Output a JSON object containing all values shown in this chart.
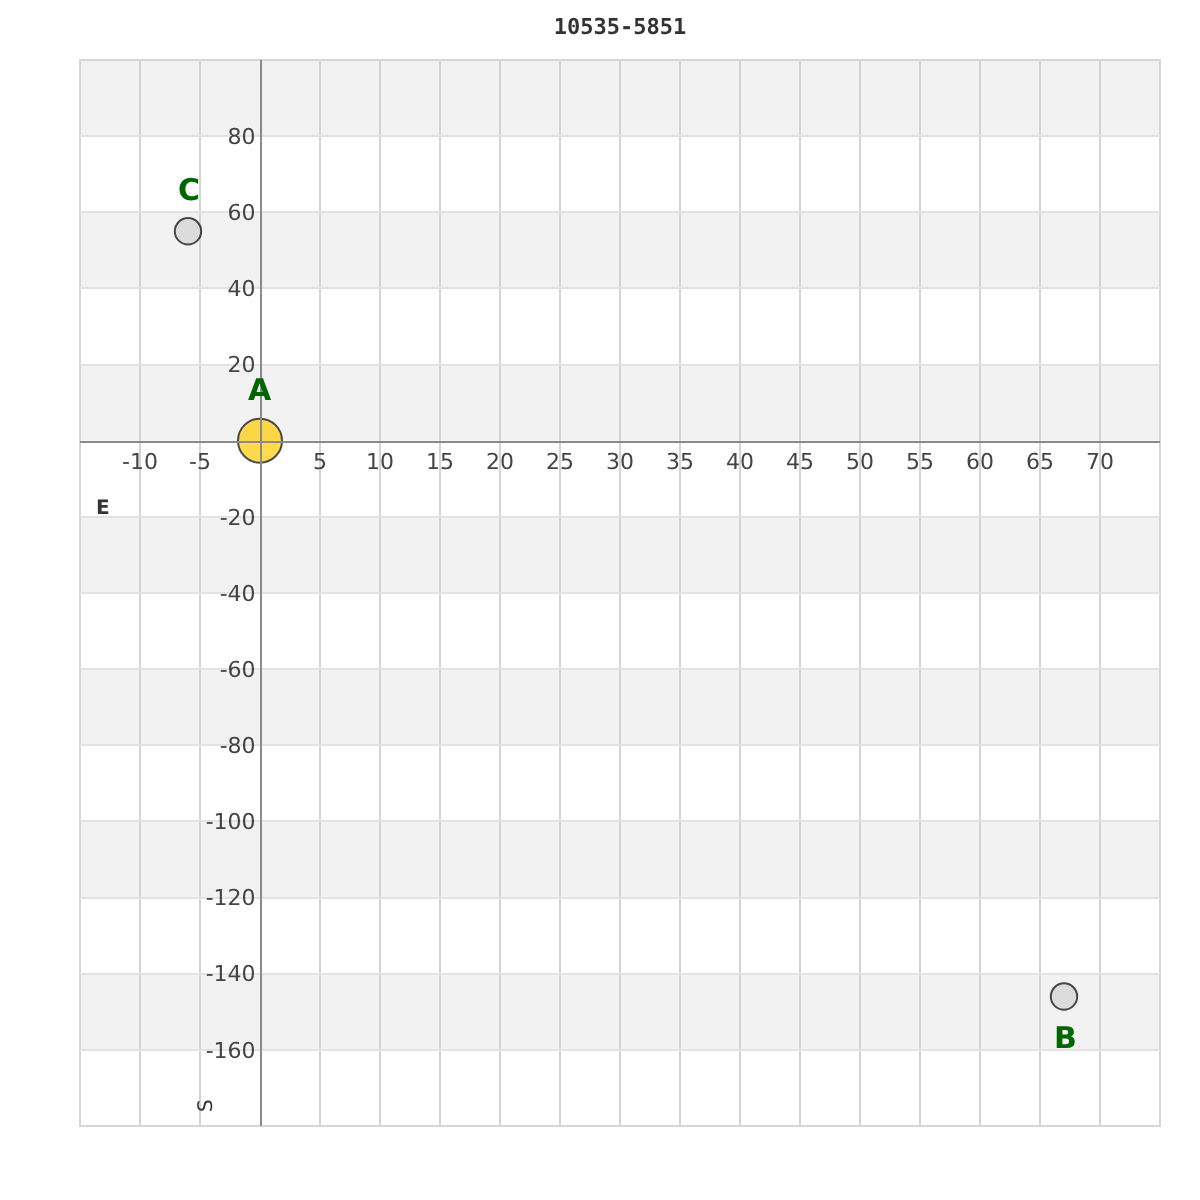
{
  "chart_data": {
    "type": "bubble",
    "title": "10535-5851",
    "xlabel": "E",
    "ylabel": "S",
    "x": [
      0,
      67,
      -6
    ],
    "values": [
      0,
      -146,
      55
    ],
    "sizes": [
      1,
      0.36,
      0.36
    ],
    "colors": [
      "#ffcc00",
      "#d3d3d3",
      "#d3d3d3"
    ],
    "marker": "circle",
    "xlim": [
      -15,
      75
    ],
    "xticks": [
      -10,
      -5,
      5,
      10,
      15,
      20,
      25,
      30,
      35,
      40,
      45,
      50,
      55,
      60,
      65,
      70
    ],
    "ylim": [
      -180,
      100
    ],
    "yticks": [
      -160,
      -140,
      -120,
      -100,
      -80,
      -60,
      -40,
      -20,
      20,
      40,
      60,
      80
    ],
    "grid": true,
    "bands": [
      {
        "axis": "y",
        "from": 80,
        "to": 100,
        "color": "#f2f2f2"
      },
      {
        "axis": "y",
        "from": 40,
        "to": 60,
        "color": "#f2f2f2"
      },
      {
        "axis": "y",
        "from": 0,
        "to": 20,
        "color": "#f2f2f2"
      },
      {
        "axis": "y",
        "from": -40,
        "to": -20,
        "color": "#f2f2f2"
      },
      {
        "axis": "y",
        "from": -80,
        "to": -60,
        "color": "#f2f2f2"
      },
      {
        "axis": "y",
        "from": -120,
        "to": -100,
        "color": "#f2f2f2"
      },
      {
        "axis": "y",
        "from": -160,
        "to": -140,
        "color": "#f2f2f2"
      }
    ],
    "annotations": [
      {
        "text": "A",
        "x": 0,
        "y": 0
      },
      {
        "text": "B",
        "x": 67,
        "y": -146
      },
      {
        "text": "C",
        "x": -6,
        "y": 55
      }
    ]
  }
}
